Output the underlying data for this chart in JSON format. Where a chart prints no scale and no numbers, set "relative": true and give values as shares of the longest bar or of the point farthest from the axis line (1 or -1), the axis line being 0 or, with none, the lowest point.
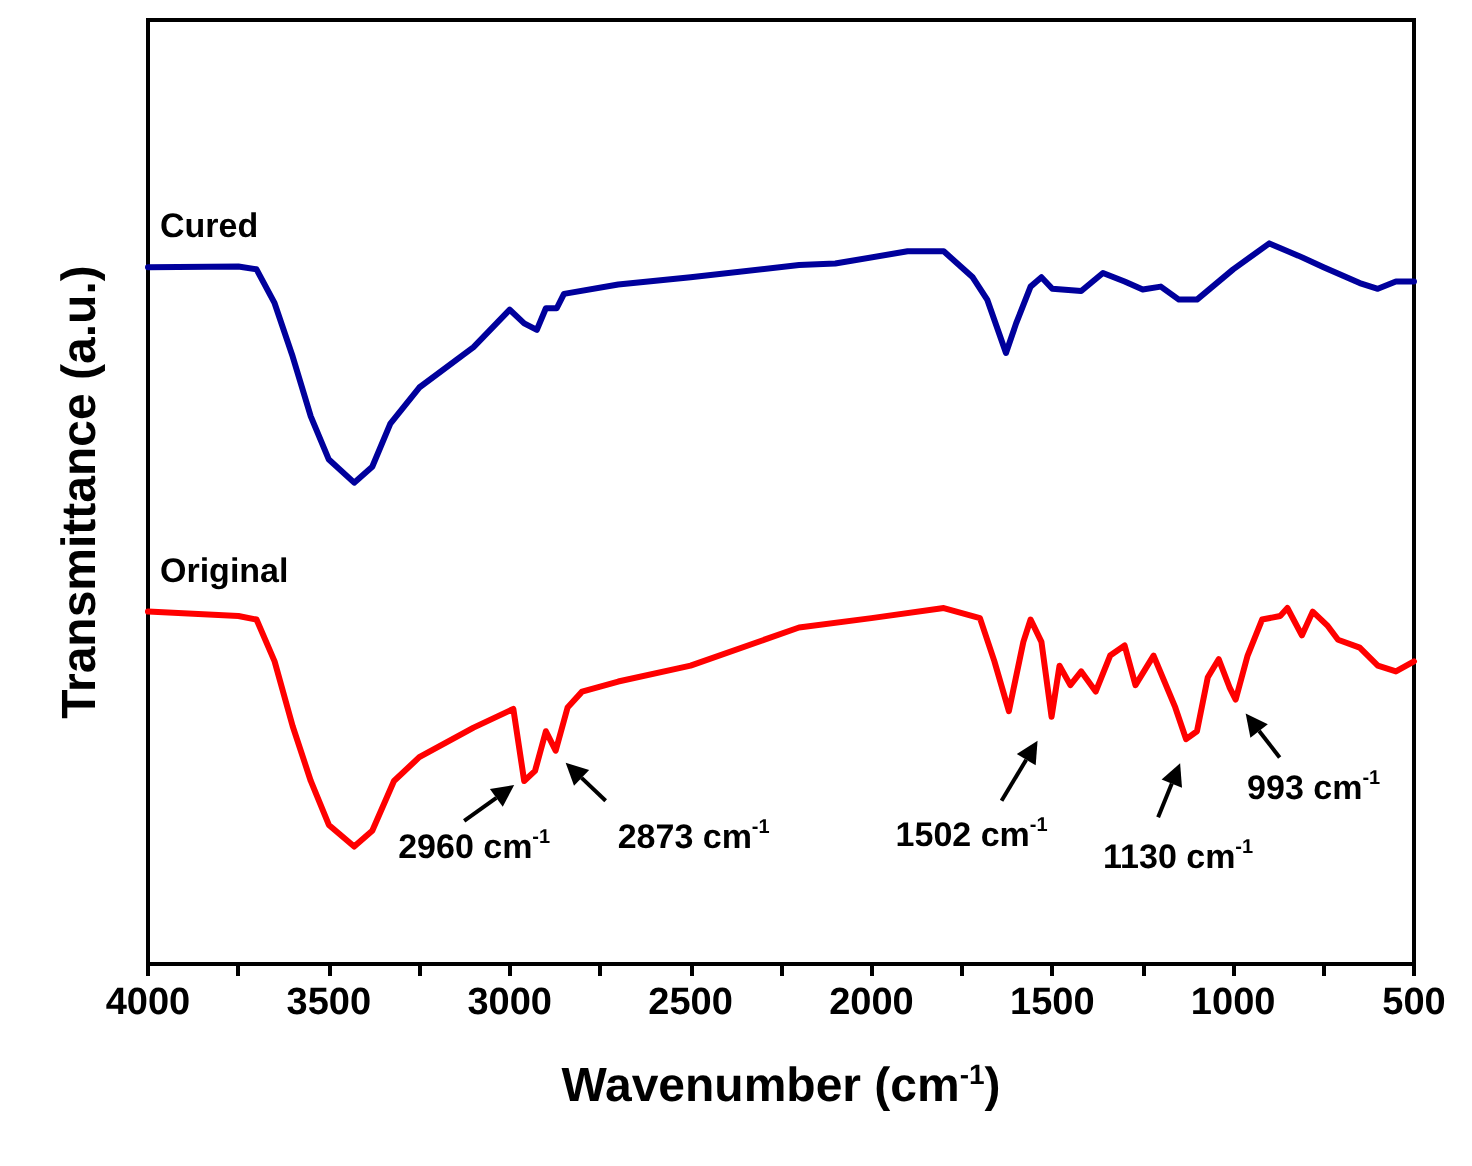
{
  "chart_data": {
    "type": "line",
    "relative": true,
    "xlabel": "Wavenumber (cm$^{-1}$)",
    "ylabel": "Transmittance (a.u.)",
    "xlim": [
      4000,
      500
    ],
    "xticks": [
      4000,
      {
        "value": 3750,
        "label": null
      },
      3500,
      {
        "value": 3250,
        "label": null
      },
      3000,
      {
        "value": 2750,
        "label": null
      },
      2500,
      {
        "value": 2250,
        "label": null
      },
      2000,
      {
        "value": 1750,
        "label": null
      },
      1500,
      {
        "value": 1250,
        "label": null
      },
      1000,
      {
        "value": 750,
        "label": null
      },
      500
    ],
    "tick_labels": "x",
    "grid": false,
    "legend": false,
    "marker": "none",
    "line_style": "solid",
    "series": [
      {
        "name": "Cured",
        "color": "#00009c",
        "x": [
          4000,
          3750,
          3700,
          3650,
          3600,
          3550,
          3500,
          3430,
          3380,
          3330,
          3250,
          3100,
          3000,
          2960,
          2925,
          2900,
          2870,
          2850,
          2700,
          2500,
          2200,
          2100,
          1900,
          1800,
          1720,
          1680,
          1628,
          1600,
          1560,
          1530,
          1500,
          1420,
          1360,
          1300,
          1250,
          1200,
          1150,
          1100,
          1000,
          900,
          820,
          750,
          650,
          600,
          550,
          500
        ],
        "values": [
          0.967,
          0.968,
          0.964,
          0.917,
          0.843,
          0.76,
          0.7,
          0.668,
          0.69,
          0.75,
          0.8,
          0.856,
          0.908,
          0.889,
          0.88,
          0.91,
          0.91,
          0.93,
          0.943,
          0.953,
          0.97,
          0.972,
          0.989,
          0.989,
          0.953,
          0.922,
          0.848,
          0.889,
          0.94,
          0.953,
          0.937,
          0.934,
          0.959,
          0.947,
          0.936,
          0.94,
          0.922,
          0.922,
          0.964,
          1,
          0.983,
          0.967,
          0.945,
          0.937,
          0.947,
          0.947
        ]
      },
      {
        "name": "Original",
        "color": "#ff0000",
        "x": [
          4000,
          3750,
          3700,
          3650,
          3600,
          3550,
          3500,
          3430,
          3380,
          3320,
          3250,
          3100,
          2990,
          2960,
          2930,
          2900,
          2873,
          2840,
          2800,
          2700,
          2500,
          2200,
          2000,
          1800,
          1700,
          1660,
          1620,
          1580,
          1560,
          1530,
          1502,
          1480,
          1450,
          1420,
          1380,
          1340,
          1300,
          1270,
          1220,
          1160,
          1130,
          1100,
          1070,
          1040,
          1010,
          993,
          960,
          920,
          870,
          850,
          810,
          780,
          740,
          710,
          650,
          600,
          550,
          500
        ],
        "values": [
          0.489,
          0.483,
          0.478,
          0.42,
          0.33,
          0.254,
          0.193,
          0.163,
          0.185,
          0.254,
          0.287,
          0.328,
          0.354,
          0.254,
          0.268,
          0.323,
          0.296,
          0.356,
          0.378,
          0.392,
          0.414,
          0.467,
          0.48,
          0.494,
          0.48,
          0.42,
          0.351,
          0.447,
          0.478,
          0.447,
          0.343,
          0.414,
          0.387,
          0.406,
          0.378,
          0.428,
          0.442,
          0.387,
          0.428,
          0.356,
          0.312,
          0.323,
          0.398,
          0.423,
          0.384,
          0.367,
          0.428,
          0.478,
          0.483,
          0.494,
          0.456,
          0.489,
          0.47,
          0.45,
          0.439,
          0.414,
          0.406,
          0.42
        ]
      }
    ],
    "annotations": [
      {
        "text": "2960 cm$^{-1}$",
        "x": 2960,
        "y": 0.254
      },
      {
        "text": "2873 cm$^{-1}$",
        "x": 2873,
        "y": 0.296
      },
      {
        "text": "1502 cm$^{-1}$",
        "x": 1502,
        "y": 0.343
      },
      {
        "text": "1130 cm$^{-1}$",
        "x": 1130,
        "y": 0.312
      },
      {
        "text": "993 cm$^{-1}$",
        "x": 993,
        "y": 0.367
      }
    ]
  }
}
